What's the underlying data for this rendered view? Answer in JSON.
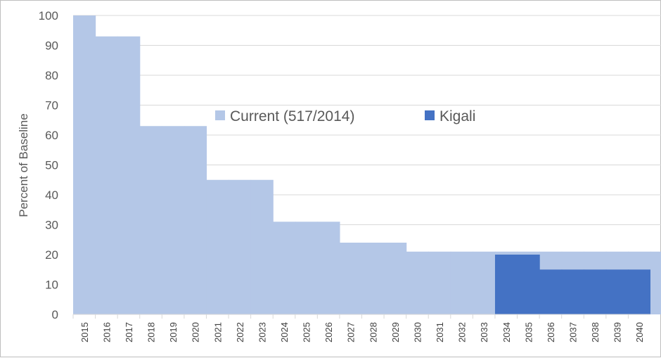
{
  "chart_data": {
    "type": "area",
    "title": "",
    "xlabel": "",
    "ylabel": "Percent of Baseline",
    "ylim": [
      0,
      100
    ],
    "yticks": [
      0,
      10,
      20,
      30,
      40,
      50,
      60,
      70,
      80,
      90,
      100
    ],
    "categories": [
      "2015",
      "2016",
      "2017",
      "2018",
      "2019",
      "2020",
      "2021",
      "2022",
      "2023",
      "2024",
      "2025",
      "2026",
      "2027",
      "2028",
      "2029",
      "2030",
      "2031",
      "2032",
      "2033",
      "2034",
      "2035",
      "2036",
      "2037",
      "2038",
      "2039",
      "2040"
    ],
    "grid": true,
    "legend_position": "center",
    "series": [
      {
        "name": "Current (517/2014)",
        "color": "#b4c7e7",
        "values": [
          100,
          93,
          93,
          63,
          63,
          63,
          45,
          45,
          45,
          31,
          31,
          31,
          24,
          24,
          24,
          21,
          21,
          21,
          21,
          21,
          21,
          21,
          21,
          21,
          21,
          21
        ]
      },
      {
        "name": "Kigali",
        "color": "#4472c4",
        "values": [
          null,
          null,
          null,
          null,
          null,
          null,
          null,
          null,
          null,
          null,
          null,
          null,
          null,
          null,
          null,
          null,
          null,
          null,
          null,
          20,
          20,
          15,
          15,
          15,
          15,
          15
        ]
      }
    ]
  }
}
